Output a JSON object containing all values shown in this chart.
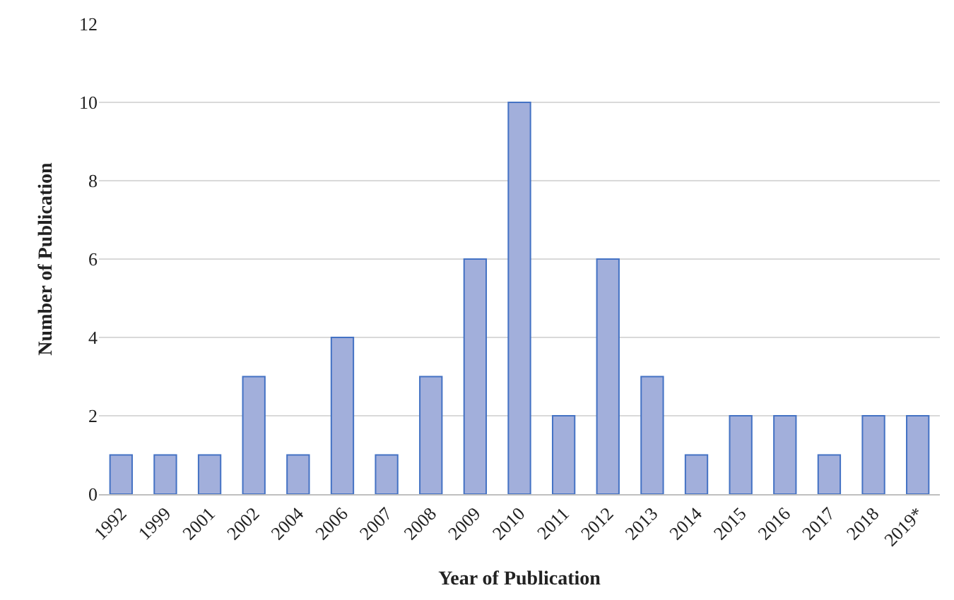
{
  "chart_data": {
    "type": "bar",
    "xlabel": "Year of Publication",
    "ylabel": "Number of Publication",
    "categories": [
      "1992",
      "1999",
      "2001",
      "2002",
      "2004",
      "2006",
      "2007",
      "2008",
      "2009",
      "2010",
      "2011",
      "2012",
      "2013",
      "2014",
      "2015",
      "2016",
      "2017",
      "2018",
      "2019*"
    ],
    "values": [
      1,
      1,
      1,
      3,
      1,
      4,
      1,
      3,
      6,
      10,
      2,
      6,
      3,
      1,
      2,
      2,
      1,
      2,
      2
    ],
    "color": "#a2afdb",
    "ylim": [
      0,
      12
    ],
    "yticks": [
      0,
      2,
      4,
      6,
      8,
      10,
      12
    ],
    "grid": "y"
  }
}
